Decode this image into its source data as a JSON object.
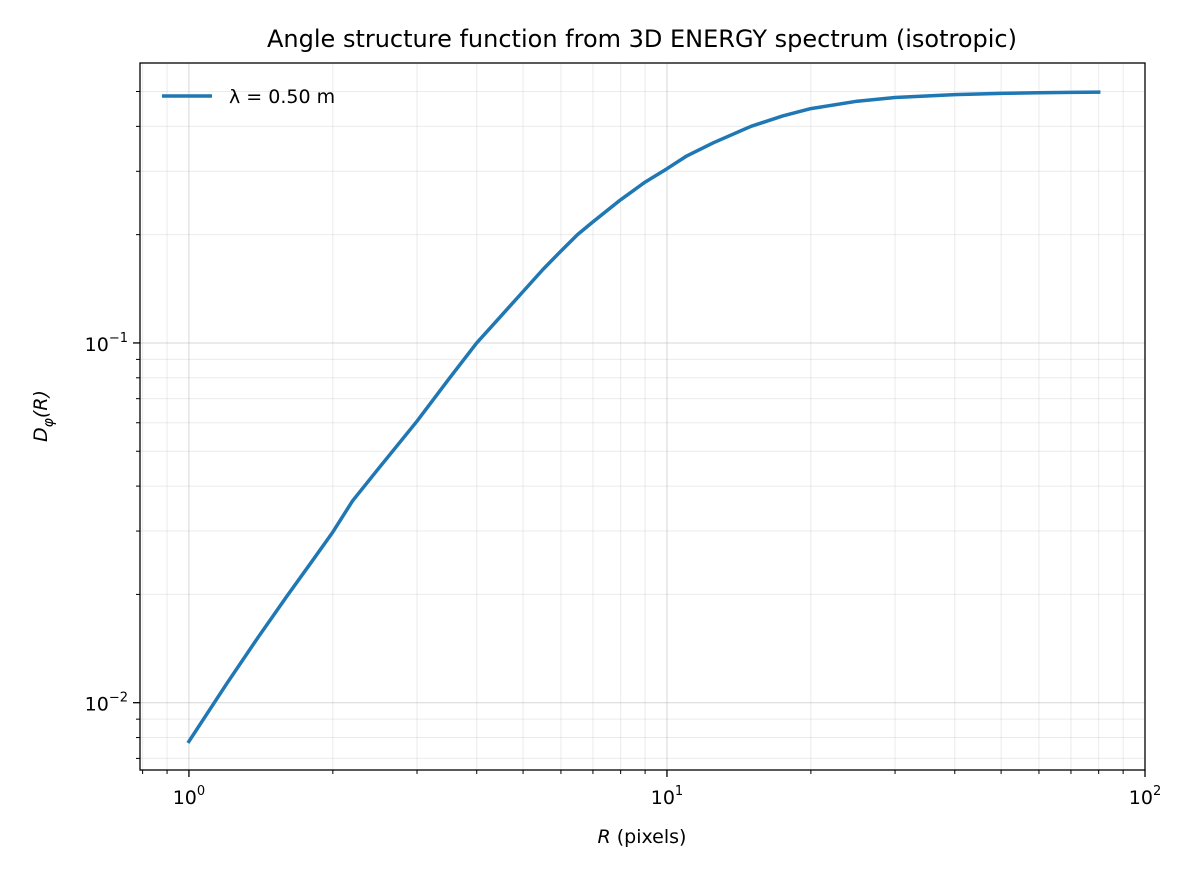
{
  "chart_data": {
    "type": "line",
    "title": "Angle structure function from 3D ENERGY spectrum (isotropic)",
    "xlabel": {
      "main": "R",
      "unit": " (pixels)"
    },
    "ylabel": {
      "base": "D",
      "sub": "φ",
      "arg": "(R)"
    },
    "xscale": "log",
    "yscale": "log",
    "xlim": [
      0.79,
      100
    ],
    "ylim": [
      0.0065,
      0.6
    ],
    "x_ticks": [
      {
        "base": "10",
        "exp": "0",
        "value": 1
      },
      {
        "base": "10",
        "exp": "1",
        "value": 10
      },
      {
        "base": "10",
        "exp": "2",
        "value": 100
      }
    ],
    "y_ticks": [
      {
        "base": "10",
        "exp": "−2",
        "value": 0.01
      },
      {
        "base": "10",
        "exp": "−1",
        "value": 0.1
      }
    ],
    "grid": true,
    "grid_which": "both",
    "legend_position": "top-left",
    "colors": {
      "series": "#1f77b4"
    },
    "series": [
      {
        "name": "λ = 0.50 m",
        "x": [
          1.0,
          1.2,
          1.4,
          1.6,
          1.8,
          2.0,
          2.2,
          2.5,
          3.0,
          3.5,
          4.0,
          4.5,
          5.0,
          5.5,
          6.0,
          6.5,
          7.0,
          8.0,
          9.0,
          10.0,
          11.0,
          12.5,
          15.0,
          17.5,
          20.0,
          25.0,
          30.0,
          40.0,
          50.0,
          60.0,
          70.0,
          80.0
        ],
        "y": [
          0.0078,
          0.0113,
          0.0153,
          0.0197,
          0.0245,
          0.0298,
          0.0364,
          0.045,
          0.0606,
          0.0795,
          0.1,
          0.119,
          0.139,
          0.16,
          0.18,
          0.2,
          0.217,
          0.25,
          0.28,
          0.305,
          0.331,
          0.36,
          0.4,
          0.428,
          0.448,
          0.47,
          0.481,
          0.49,
          0.494,
          0.496,
          0.497,
          0.498
        ]
      }
    ]
  }
}
